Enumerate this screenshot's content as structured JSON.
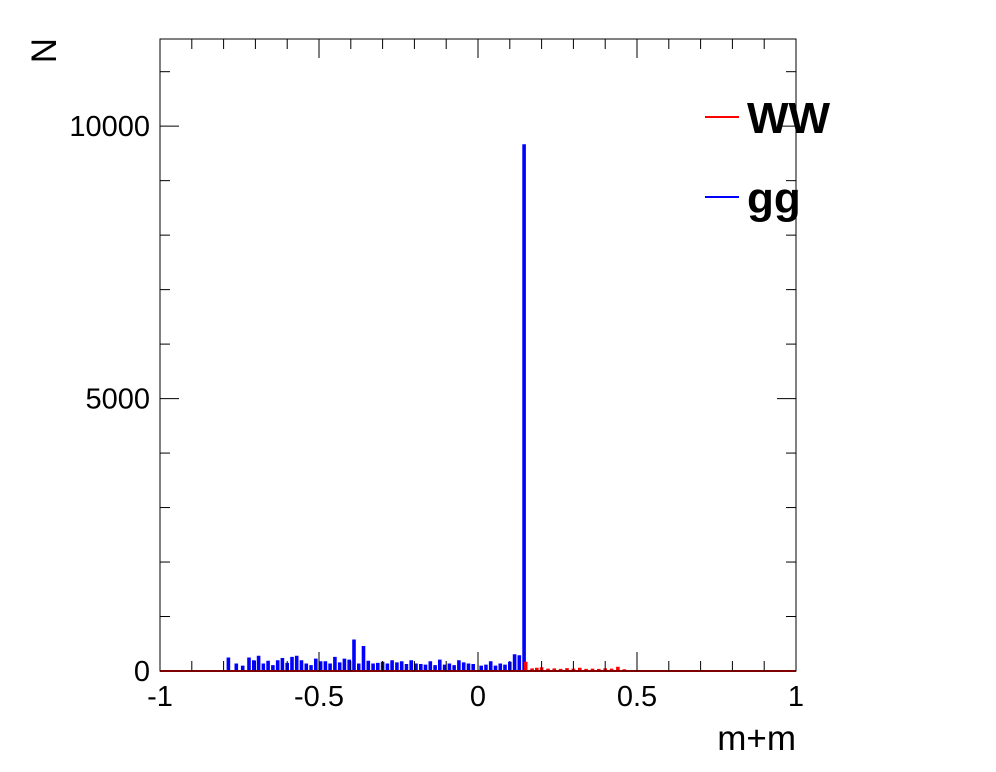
{
  "chart_data": {
    "type": "line",
    "title": "",
    "xlabel": "m+m",
    "ylabel": "N",
    "xlim": [
      -1,
      1
    ],
    "ylim": [
      0,
      11600
    ],
    "x_ticks": [
      -1,
      -0.5,
      0,
      0.5,
      1
    ],
    "x_tick_labels": [
      "-1",
      "-0.5",
      "0",
      "0.5",
      "1"
    ],
    "y_ticks": [
      0,
      5000,
      10000
    ],
    "y_tick_labels": [
      "0",
      "5000",
      "10000"
    ],
    "grid": false,
    "legend_position": "top-right",
    "bin_width": 0.005,
    "series": [
      {
        "name": "WW",
        "color": "#ff0000",
        "x": [
          0.15,
          0.17,
          0.185,
          0.2,
          0.22,
          0.24,
          0.26,
          0.28,
          0.3,
          0.32,
          0.34,
          0.36,
          0.38,
          0.4,
          0.42,
          0.44,
          0.46
        ],
        "values": [
          150,
          30,
          40,
          50,
          25,
          30,
          20,
          35,
          25,
          40,
          20,
          25,
          20,
          30,
          25,
          60,
          15
        ]
      },
      {
        "name": "gg",
        "color": "#0000ff",
        "x": [
          -0.785,
          -0.76,
          -0.74,
          -0.72,
          -0.705,
          -0.69,
          -0.675,
          -0.66,
          -0.645,
          -0.63,
          -0.615,
          -0.6,
          -0.585,
          -0.57,
          -0.555,
          -0.54,
          -0.525,
          -0.51,
          -0.495,
          -0.48,
          -0.465,
          -0.45,
          -0.435,
          -0.42,
          -0.405,
          -0.39,
          -0.375,
          -0.36,
          -0.345,
          -0.33,
          -0.315,
          -0.3,
          -0.285,
          -0.27,
          -0.255,
          -0.24,
          -0.225,
          -0.21,
          -0.195,
          -0.18,
          -0.165,
          -0.15,
          -0.135,
          -0.12,
          -0.105,
          -0.09,
          -0.075,
          -0.06,
          -0.045,
          -0.03,
          -0.015,
          0.01,
          0.025,
          0.04,
          0.055,
          0.07,
          0.085,
          0.1,
          0.115,
          0.13,
          0.145
        ],
        "values": [
          230,
          120,
          80,
          230,
          180,
          260,
          120,
          170,
          90,
          180,
          220,
          130,
          240,
          260,
          180,
          120,
          90,
          210,
          160,
          160,
          120,
          240,
          140,
          210,
          190,
          560,
          120,
          440,
          170,
          120,
          130,
          150,
          120,
          180,
          140,
          160,
          110,
          180,
          120,
          110,
          100,
          160,
          90,
          190,
          100,
          120,
          90,
          180,
          140,
          120,
          110,
          80,
          100,
          160,
          80,
          120,
          100,
          150,
          290,
          270,
          9650
        ]
      }
    ]
  }
}
